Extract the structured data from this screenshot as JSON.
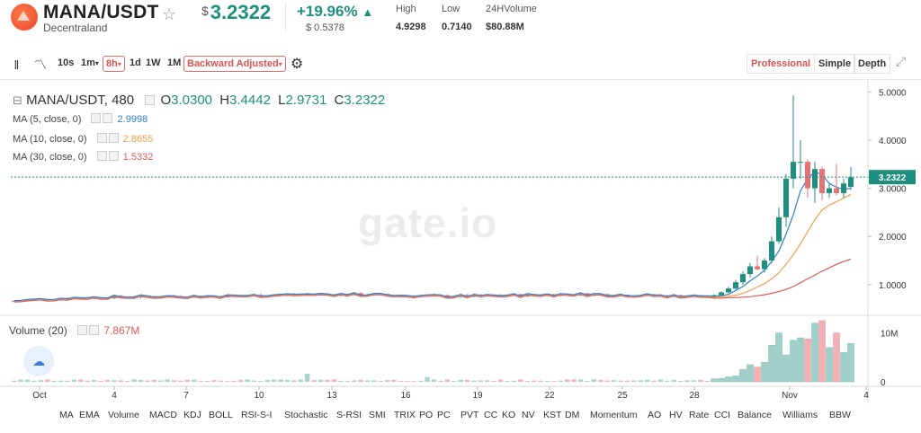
{
  "header": {
    "pair": "MANA/USDT",
    "name": "Decentraland",
    "currency_symbol": "$",
    "price": "3.2322",
    "change_pct": "+19.96%",
    "change_abs": "$ 0.5378",
    "stats": [
      {
        "label": "High",
        "value": "4.9298"
      },
      {
        "label": "Low",
        "value": "0.7140"
      },
      {
        "label": "24HVolume",
        "value": "$80.88M"
      }
    ]
  },
  "toolbar": {
    "intervals": [
      "10s",
      "1m",
      "8h",
      "1d",
      "1W",
      "1M"
    ],
    "active_interval": "8h",
    "adjust_label": "Backward Adjusted",
    "modes": [
      "Professional",
      "Simple",
      "Depth"
    ],
    "active_mode": "Professional"
  },
  "legend": {
    "symbol": "MANA/USDT, 480",
    "open": "3.0300",
    "high": "3.4442",
    "low": "2.9731",
    "close": "3.2322",
    "ma": [
      {
        "label": "MA (5, close, 0)",
        "value": "2.9998",
        "color": "#2f7ed8"
      },
      {
        "label": "MA (10, close, 0)",
        "value": "2.8655",
        "color": "#f0a04b"
      },
      {
        "label": "MA (30, close, 0)",
        "value": "1.5332",
        "color": "#e05a5a"
      }
    ],
    "volume_label": "Volume (20)",
    "volume_value": "7.867M"
  },
  "watermark": "gate.io",
  "current_price_tag": "3.2322",
  "indicators": [
    "MA",
    "EMA",
    "Volume",
    "MACD",
    "KDJ",
    "BOLL",
    "RSI-S-I",
    "Stochastic",
    "S-RSI",
    "SMI",
    "TRIX",
    "PO",
    "PC",
    "PVT",
    "CC",
    "KO",
    "NV",
    "KST",
    "DM",
    "Momentum",
    "AO",
    "HV",
    "Rate",
    "CCI",
    "Balance",
    "Williams",
    "BBW"
  ],
  "chart_data": {
    "type": "candlestick",
    "price_axis": {
      "ticks": [
        1.0,
        2.0,
        3.0,
        4.0,
        5.0
      ],
      "tick_labels": [
        "1.0000",
        "2.0000",
        "3.0000",
        "4.0000",
        "5.0000"
      ],
      "range": [
        0.55,
        5.1
      ]
    },
    "volume_axis": {
      "ticks": [
        0,
        10
      ],
      "tick_labels": [
        "0",
        "10M"
      ],
      "range": [
        0,
        12.5
      ]
    },
    "x_labels": [
      "Oct",
      "4",
      "7",
      "10",
      "13",
      "16",
      "19",
      "22",
      "25",
      "28",
      "Nov",
      "4"
    ],
    "ohlc_recent": [
      [
        0.76,
        0.8,
        0.74,
        0.78
      ],
      [
        0.78,
        0.86,
        0.77,
        0.84
      ],
      [
        0.84,
        0.95,
        0.82,
        0.92
      ],
      [
        0.92,
        1.1,
        0.9,
        1.05
      ],
      [
        1.05,
        1.28,
        1.0,
        1.22
      ],
      [
        1.22,
        1.45,
        1.15,
        1.38
      ],
      [
        1.38,
        1.6,
        1.3,
        1.32
      ],
      [
        1.32,
        1.55,
        1.25,
        1.5
      ],
      [
        1.5,
        2.0,
        1.45,
        1.9
      ],
      [
        1.9,
        2.6,
        1.85,
        2.4
      ],
      [
        2.4,
        3.3,
        2.2,
        3.2
      ],
      [
        3.2,
        4.93,
        3.0,
        3.55
      ],
      [
        3.55,
        4.0,
        3.2,
        3.55
      ],
      [
        3.55,
        3.6,
        2.8,
        3.0
      ],
      [
        3.0,
        3.55,
        2.7,
        3.4
      ],
      [
        3.4,
        3.45,
        2.75,
        2.9
      ],
      [
        2.9,
        3.1,
        2.8,
        3.0
      ],
      [
        3.0,
        3.5,
        2.85,
        2.9
      ],
      [
        2.9,
        3.2,
        2.8,
        3.1
      ],
      [
        3.03,
        3.44,
        2.97,
        3.23
      ]
    ],
    "volume_recent": [
      0.6,
      0.7,
      1.0,
      1.2,
      2.5,
      3.5,
      3.0,
      4.0,
      7.5,
      10.0,
      5.5,
      8.5,
      9.0,
      8.8,
      12.0,
      12.5,
      7.0,
      10.0,
      6.0,
      7.867
    ],
    "ma5_recent": [
      0.76,
      0.77,
      0.8,
      0.88,
      0.96,
      1.08,
      1.18,
      1.3,
      1.48,
      1.7,
      2.05,
      2.45,
      2.95,
      3.2,
      3.35,
      3.28,
      3.1,
      3.02,
      2.98,
      3.0
    ],
    "ma10_recent": [
      0.74,
      0.75,
      0.76,
      0.78,
      0.82,
      0.88,
      0.95,
      1.02,
      1.12,
      1.25,
      1.42,
      1.62,
      1.85,
      2.1,
      2.35,
      2.55,
      2.65,
      2.72,
      2.8,
      2.87
    ],
    "ma30_recent": [
      0.72,
      0.72,
      0.73,
      0.73,
      0.74,
      0.75,
      0.77,
      0.79,
      0.82,
      0.86,
      0.9,
      0.96,
      1.04,
      1.12,
      1.2,
      1.28,
      1.35,
      1.42,
      1.48,
      1.53
    ]
  }
}
